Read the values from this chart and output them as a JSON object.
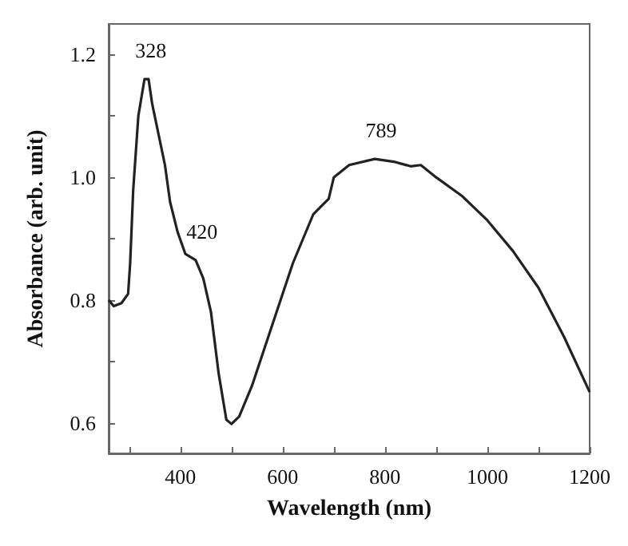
{
  "chart_data": {
    "type": "line",
    "xlabel": "Wavelength (nm)",
    "ylabel": "Absorbance (arb. unit)",
    "x": [
      260,
      270,
      285,
      298,
      302,
      308,
      318,
      330,
      338,
      345,
      360,
      370,
      380,
      395,
      410,
      430,
      445,
      460,
      475,
      490,
      500,
      515,
      540,
      580,
      620,
      660,
      690,
      700,
      730,
      780,
      820,
      850,
      870,
      900,
      950,
      1000,
      1050,
      1100,
      1150,
      1200
    ],
    "series": [
      {
        "color": "#222222",
        "values": [
          0.8,
          0.79,
          0.795,
          0.81,
          0.86,
          0.98,
          1.1,
          1.16,
          1.16,
          1.12,
          1.06,
          1.02,
          0.96,
          0.91,
          0.875,
          0.865,
          0.835,
          0.78,
          0.68,
          0.605,
          0.598,
          0.61,
          0.66,
          0.76,
          0.86,
          0.94,
          0.965,
          1.0,
          1.02,
          1.03,
          1.025,
          1.018,
          1.02,
          1.0,
          0.97,
          0.93,
          0.88,
          0.82,
          0.74,
          0.65
        ]
      }
    ],
    "annotations": [
      {
        "text": "328",
        "x": 330,
        "y": 1.16
      },
      {
        "text": "420",
        "x": 430,
        "y": 0.865
      },
      {
        "text": "789",
        "x": 780,
        "y": 1.03
      }
    ],
    "xlim": [
      260,
      1200
    ],
    "xticks": [
      {
        "value": 300,
        "label": null
      },
      400,
      {
        "value": 500,
        "label": null
      },
      600,
      {
        "value": 700,
        "label": null
      },
      800,
      {
        "value": 900,
        "label": null
      },
      1000,
      {
        "value": 1100,
        "label": null
      },
      1200
    ],
    "ylim": [
      0.55,
      1.25
    ],
    "yticks": [
      0.6,
      {
        "value": 0.7,
        "label": null
      },
      0.8,
      {
        "value": 0.9,
        "label": null
      },
      {
        "value": 1,
        "label": "1.0"
      },
      {
        "value": 1.1,
        "label": null
      },
      1.2
    ],
    "grid": false,
    "marker": "none",
    "line_style": "solid"
  }
}
